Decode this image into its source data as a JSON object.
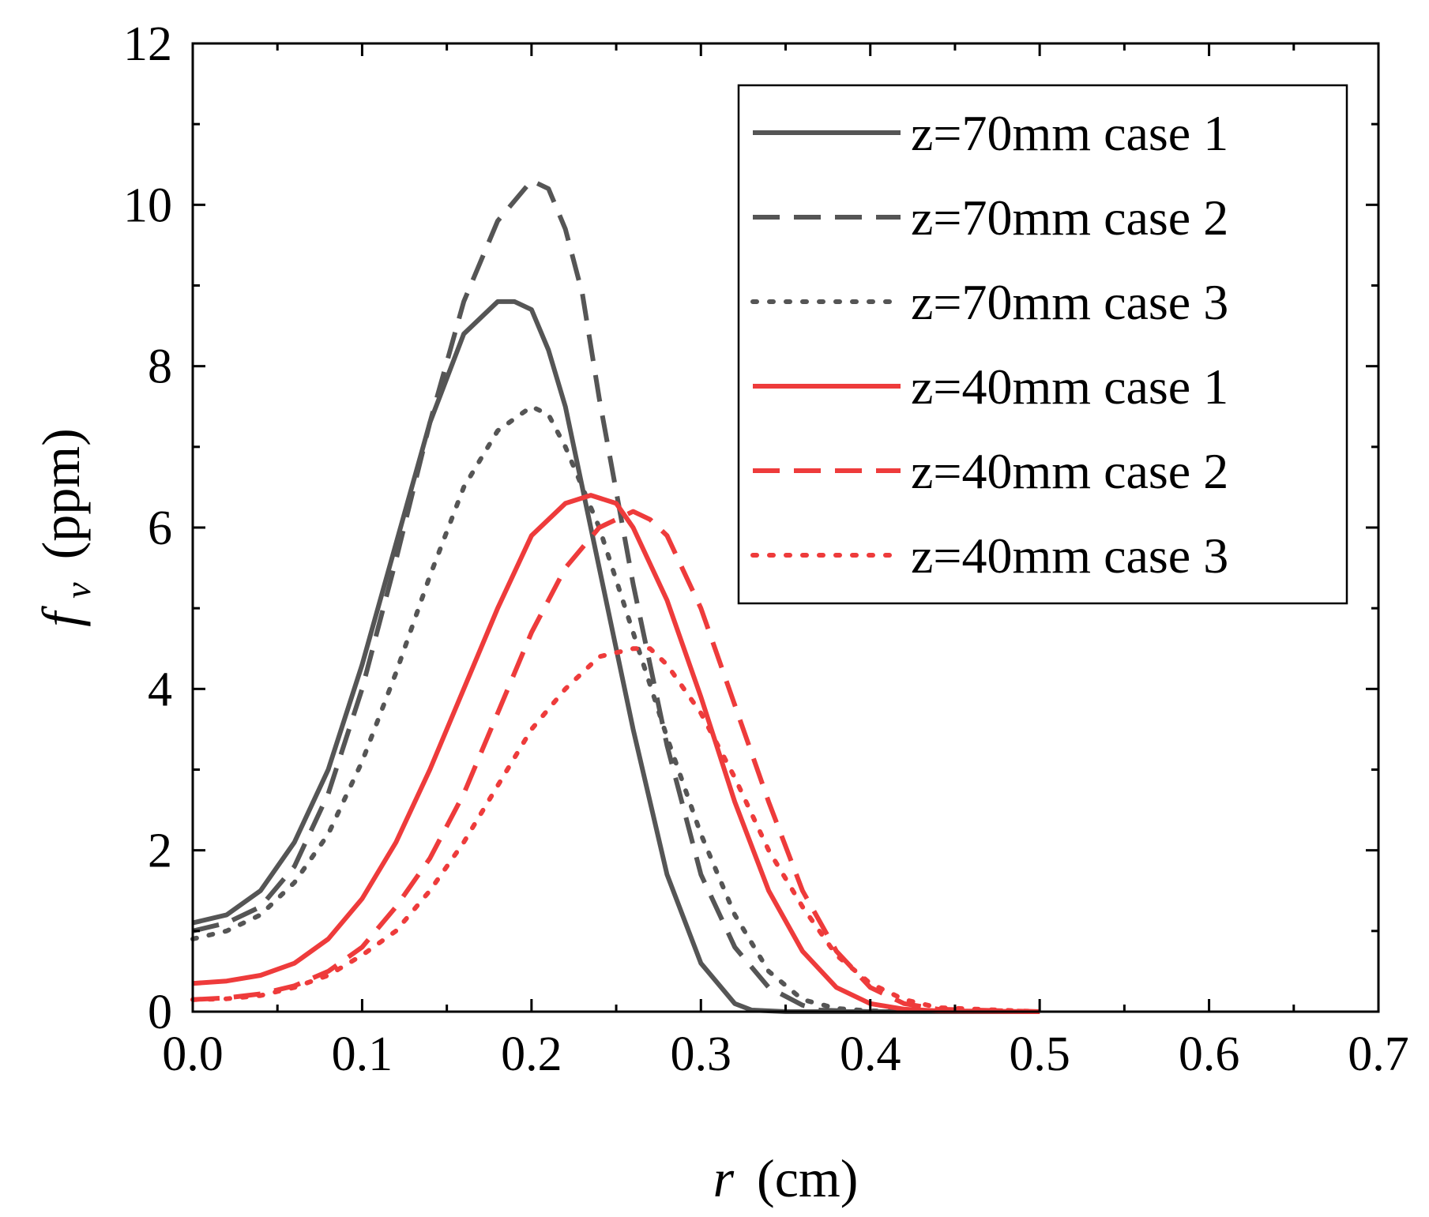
{
  "chart_data": {
    "type": "line",
    "title": "",
    "xlabel_var": "r",
    "xlabel_unit": "(cm)",
    "ylabel_var": "f",
    "ylabel_sub": "v",
    "ylabel_unit": "(ppm)",
    "xlim": [
      0,
      0.7
    ],
    "ylim": [
      0,
      12
    ],
    "x_ticks": [
      0.0,
      0.1,
      0.2,
      0.3,
      0.4,
      0.5,
      0.6,
      0.7
    ],
    "x_tick_labels": [
      "0.0",
      "0.1",
      "0.2",
      "0.3",
      "0.4",
      "0.5",
      "0.6",
      "0.7"
    ],
    "y_ticks": [
      0,
      2,
      4,
      6,
      8,
      10,
      12
    ],
    "y_tick_labels": [
      "0",
      "2",
      "4",
      "6",
      "8",
      "10",
      "12"
    ],
    "grid": false,
    "legend_position": "top-right",
    "series": [
      {
        "name": "z=70mm case 1",
        "color": "#555555",
        "style": "solid",
        "x": [
          0,
          0.02,
          0.04,
          0.06,
          0.08,
          0.1,
          0.12,
          0.14,
          0.16,
          0.18,
          0.19,
          0.2,
          0.21,
          0.22,
          0.24,
          0.26,
          0.28,
          0.3,
          0.32,
          0.33,
          0.35,
          0.4,
          0.5
        ],
        "y": [
          1.1,
          1.2,
          1.5,
          2.1,
          3.0,
          4.3,
          5.8,
          7.3,
          8.4,
          8.8,
          8.8,
          8.7,
          8.2,
          7.5,
          5.5,
          3.5,
          1.7,
          0.6,
          0.1,
          0.02,
          0,
          0,
          0
        ]
      },
      {
        "name": "z=70mm case 2",
        "color": "#555555",
        "style": "dashed",
        "x": [
          0,
          0.02,
          0.04,
          0.06,
          0.08,
          0.1,
          0.12,
          0.14,
          0.16,
          0.18,
          0.2,
          0.21,
          0.22,
          0.23,
          0.24,
          0.26,
          0.28,
          0.3,
          0.32,
          0.34,
          0.36,
          0.37,
          0.4,
          0.5
        ],
        "y": [
          1.0,
          1.1,
          1.3,
          1.8,
          2.7,
          4.0,
          5.6,
          7.3,
          8.8,
          9.8,
          10.3,
          10.2,
          9.7,
          8.9,
          7.6,
          5.3,
          3.3,
          1.7,
          0.8,
          0.3,
          0.08,
          0.02,
          0,
          0
        ]
      },
      {
        "name": "z=70mm case 3",
        "color": "#555555",
        "style": "dotted",
        "x": [
          0,
          0.02,
          0.04,
          0.06,
          0.08,
          0.1,
          0.12,
          0.14,
          0.16,
          0.18,
          0.2,
          0.21,
          0.22,
          0.24,
          0.26,
          0.28,
          0.3,
          0.32,
          0.34,
          0.36,
          0.38,
          0.4,
          0.45
        ],
        "y": [
          0.9,
          1.0,
          1.2,
          1.6,
          2.2,
          3.1,
          4.2,
          5.4,
          6.5,
          7.2,
          7.5,
          7.4,
          7.0,
          6.0,
          4.7,
          3.4,
          2.2,
          1.2,
          0.5,
          0.15,
          0.04,
          0.01,
          0
        ]
      },
      {
        "name": "z=40mm case 1",
        "color": "#ee3b3b",
        "style": "solid",
        "x": [
          0,
          0.02,
          0.04,
          0.06,
          0.08,
          0.1,
          0.12,
          0.14,
          0.16,
          0.18,
          0.2,
          0.22,
          0.235,
          0.25,
          0.26,
          0.28,
          0.3,
          0.32,
          0.34,
          0.36,
          0.38,
          0.4,
          0.42,
          0.44,
          0.5
        ],
        "y": [
          0.35,
          0.38,
          0.45,
          0.6,
          0.9,
          1.4,
          2.1,
          3.0,
          4.0,
          5.0,
          5.9,
          6.3,
          6.4,
          6.3,
          6.0,
          5.1,
          3.9,
          2.6,
          1.5,
          0.75,
          0.3,
          0.1,
          0.03,
          0.01,
          0
        ]
      },
      {
        "name": "z=40mm case 2",
        "color": "#ee3b3b",
        "style": "dashed",
        "x": [
          0,
          0.02,
          0.04,
          0.06,
          0.08,
          0.1,
          0.12,
          0.14,
          0.16,
          0.18,
          0.2,
          0.22,
          0.24,
          0.26,
          0.27,
          0.28,
          0.3,
          0.32,
          0.34,
          0.36,
          0.38,
          0.4,
          0.42,
          0.44,
          0.5
        ],
        "y": [
          0.15,
          0.17,
          0.22,
          0.32,
          0.5,
          0.8,
          1.3,
          1.9,
          2.7,
          3.7,
          4.7,
          5.5,
          6.0,
          6.2,
          6.1,
          5.9,
          5.0,
          3.8,
          2.6,
          1.5,
          0.75,
          0.3,
          0.1,
          0.03,
          0
        ]
      },
      {
        "name": "z=40mm case 3",
        "color": "#ee3b3b",
        "style": "dotted",
        "x": [
          0,
          0.02,
          0.04,
          0.06,
          0.08,
          0.1,
          0.12,
          0.14,
          0.16,
          0.18,
          0.2,
          0.22,
          0.24,
          0.26,
          0.27,
          0.28,
          0.3,
          0.32,
          0.34,
          0.36,
          0.38,
          0.4,
          0.42,
          0.44,
          0.5
        ],
        "y": [
          0.15,
          0.16,
          0.2,
          0.3,
          0.45,
          0.7,
          1.0,
          1.5,
          2.1,
          2.8,
          3.5,
          4.0,
          4.4,
          4.5,
          4.5,
          4.3,
          3.7,
          2.9,
          2.0,
          1.3,
          0.7,
          0.35,
          0.15,
          0.05,
          0
        ]
      }
    ]
  }
}
